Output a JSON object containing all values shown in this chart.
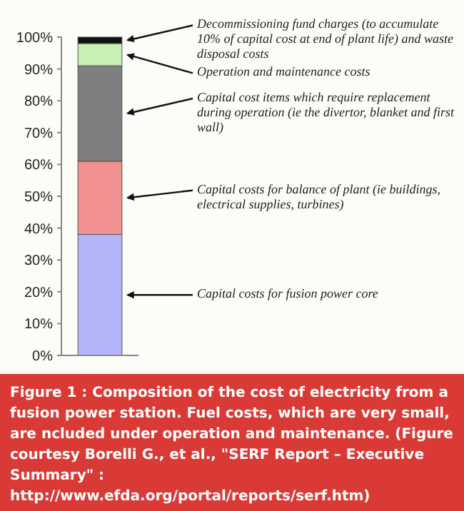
{
  "chart_data": {
    "type": "bar",
    "stacked": true,
    "categories": [
      null
    ],
    "series": [
      {
        "color": "#b4b4fa",
        "values": [
          38
        ]
      },
      {
        "color": "#f09090",
        "values": [
          23
        ]
      },
      {
        "color": "#7f7f7f",
        "values": [
          30
        ]
      },
      {
        "color": "#c8f0b4",
        "values": [
          7
        ]
      },
      {
        "color": "#111111",
        "values": [
          2
        ]
      }
    ],
    "ylim": [
      0,
      100
    ],
    "yticks": [
      {
        "value": 0,
        "label": "0%"
      },
      {
        "value": 10,
        "label": "10%"
      },
      {
        "value": 20,
        "label": "20%"
      },
      {
        "value": 30,
        "label": "30%"
      },
      {
        "value": 40,
        "label": "40%"
      },
      {
        "value": 50,
        "label": "50%"
      },
      {
        "value": 60,
        "label": "60%"
      },
      {
        "value": 70,
        "label": "70%"
      },
      {
        "value": 80,
        "label": "80%"
      },
      {
        "value": 90,
        "label": "90%"
      },
      {
        "value": 100,
        "label": "100%"
      }
    ],
    "grid": false,
    "annotations": [
      "Decommissioning fund charges (to accumulate 10% of capital cost at end of plant life) and waste disposal costs",
      "Operation and maintenance costs",
      "Capital cost items which require replacement during operation (ie the divertor, blanket and first wall)",
      "Capital costs for balance of plant (ie buildings, electrical supplies, turbines)",
      "Capital costs for fusion power core",
      "Figure 1 : Composition of the cost of electricity from a fusion power station. Fuel costs, which are very small, are ncluded under operation and maintenance. (Figure courtesy Borelli G., et al., \"SERF Report – Executive Summary\" : http://www.efda.org/portal/reports/serf.htm)"
    ]
  }
}
